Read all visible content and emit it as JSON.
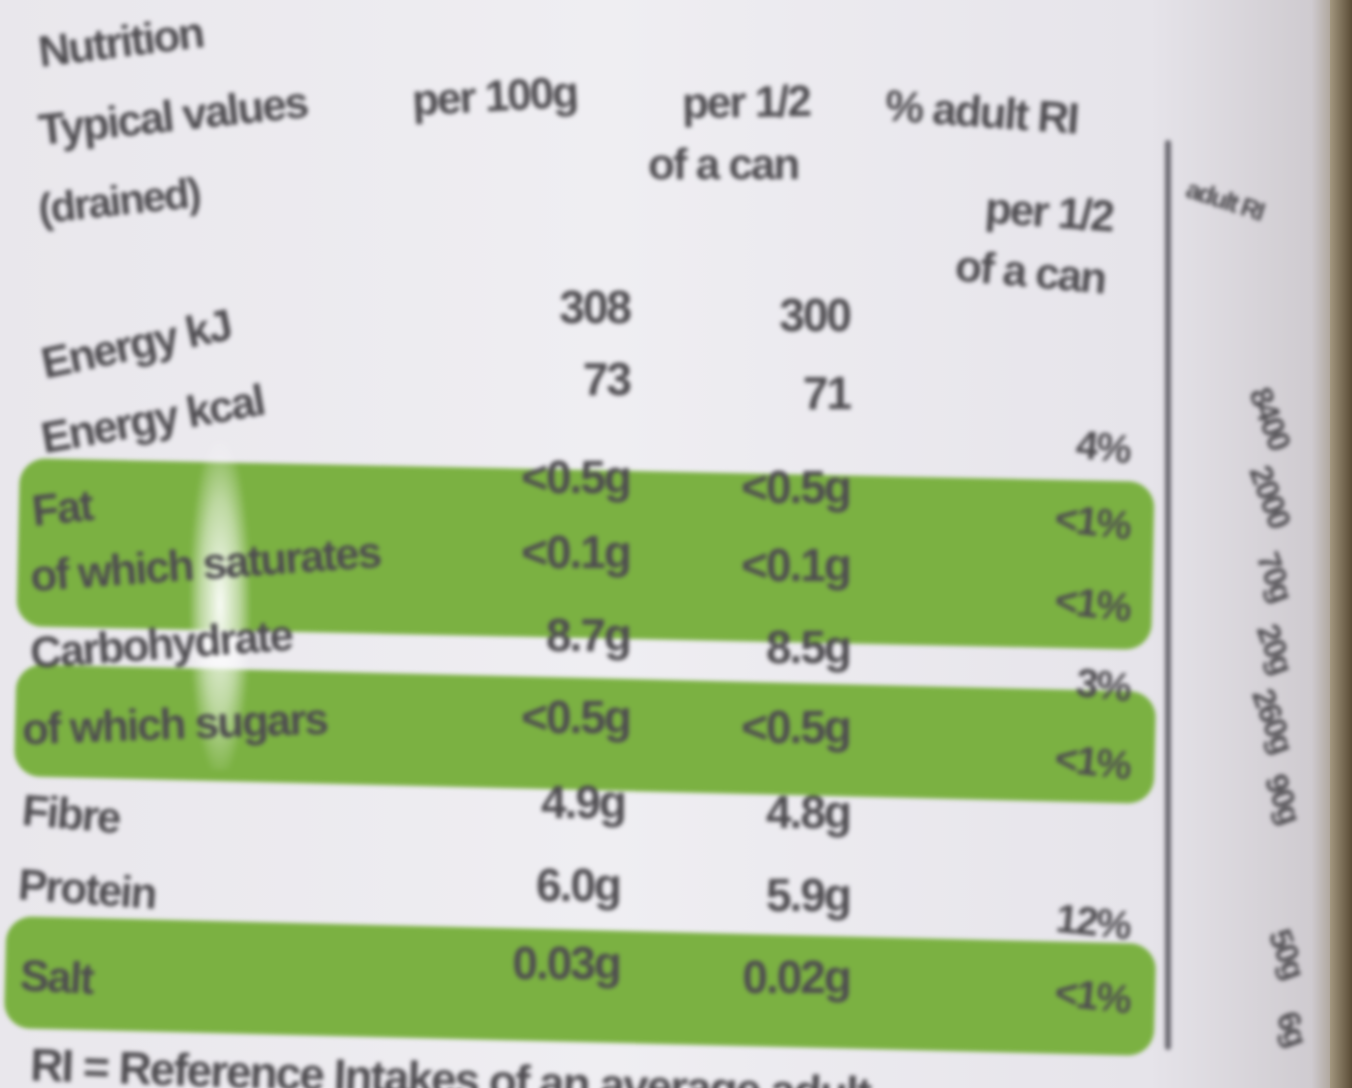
{
  "header": {
    "title": "Nutrition",
    "line2": "Typical values",
    "line3": "(drained)",
    "col1": "per 100g",
    "col2_line1": "per 1/2",
    "col2_line2": "of a can",
    "col3_line1": "% adult RI",
    "col3_line2": "per 1/2",
    "col3_line3": "of a can",
    "col4": "adult RI"
  },
  "rows": [
    {
      "name": "Energy kJ",
      "per100": "308",
      "perHalf": "300",
      "ri": "",
      "adultRi": "8400"
    },
    {
      "name": "Energy kcal",
      "per100": "73",
      "perHalf": "71",
      "ri": "4%",
      "adultRi": "2000"
    },
    {
      "name": "Fat",
      "per100": "<0.5g",
      "perHalf": "<0.5g",
      "ri": "<1%",
      "adultRi": "70g"
    },
    {
      "name": "of which saturates",
      "per100": "<0.1g",
      "perHalf": "<0.1g",
      "ri": "<1%",
      "adultRi": "20g"
    },
    {
      "name": "Carbohydrate",
      "per100": "8.7g",
      "perHalf": "8.5g",
      "ri": "3%",
      "adultRi": "260g"
    },
    {
      "name": "of which sugars",
      "per100": "<0.5g",
      "perHalf": "<0.5g",
      "ri": "<1%",
      "adultRi": "90g"
    },
    {
      "name": "Fibre",
      "per100": "4.9g",
      "perHalf": "4.8g",
      "ri": "",
      "adultRi": ""
    },
    {
      "name": "Protein",
      "per100": "6.0g",
      "perHalf": "5.9g",
      "ri": "12%",
      "adultRi": "50g"
    },
    {
      "name": "Salt",
      "per100": "0.03g",
      "perHalf": "0.02g",
      "ri": "<1%",
      "adultRi": "6g"
    }
  ],
  "footer": "RI = Reference Intakes of an average adult",
  "colors": {
    "highlight": "#7bb142",
    "text": "#4e4c50",
    "background": "#efeef2"
  }
}
